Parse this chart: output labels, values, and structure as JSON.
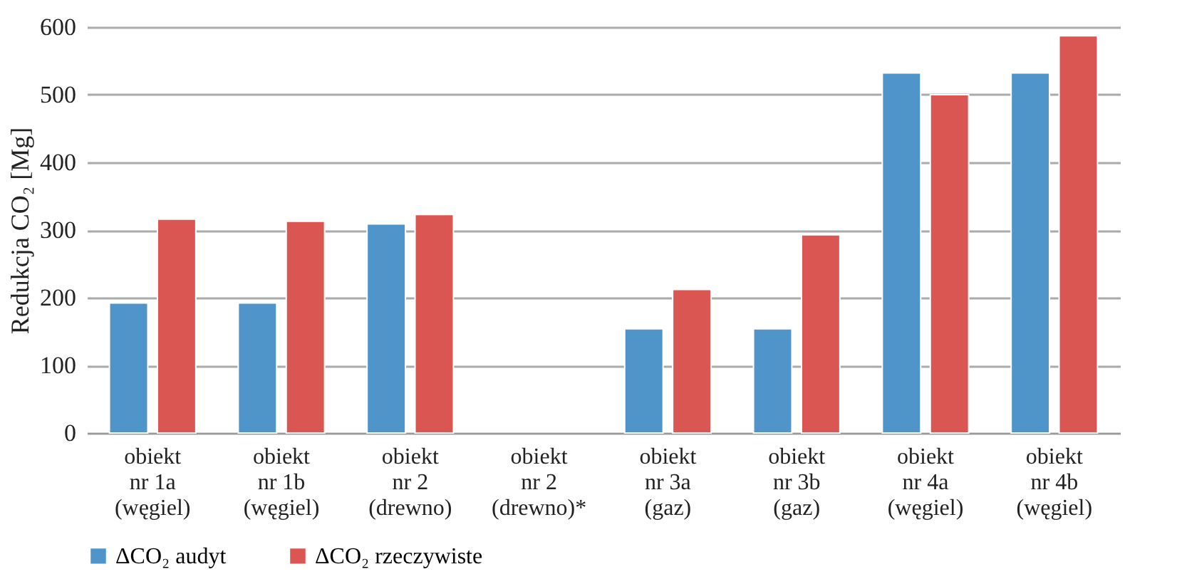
{
  "chart_data": {
    "type": "bar",
    "ylabel": "Redukcja CO₂ [Mg]",
    "categories": [
      "obiekt\nnr 1a\n(węgiel)",
      "obiekt\nnr 1b\n(węgiel)",
      "obiekt\nnr 2\n(drewno)",
      "obiekt\nnr 2\n(drewno)*",
      "obiekt\nnr 3a\n(gaz)",
      "obiekt\nnr 3b\n(gaz)",
      "obiekt\nnr 4a\n(węgiel)",
      "obiekt\nnr 4b\n(węgiel)"
    ],
    "series": [
      {
        "name": "ΔCO₂ audyt",
        "color": "#4f95c9",
        "values": [
          192,
          192,
          309,
          null,
          154,
          154,
          532,
          532
        ]
      },
      {
        "name": "ΔCO₂ rzeczywiste",
        "color": "#d95652",
        "values": [
          316,
          313,
          323,
          null,
          212,
          293,
          500,
          587
        ]
      }
    ],
    "ylim": [
      0,
      600
    ],
    "yticks": [
      0,
      100,
      200,
      300,
      400,
      500,
      600
    ],
    "grid": "y",
    "legend": "bottom"
  }
}
